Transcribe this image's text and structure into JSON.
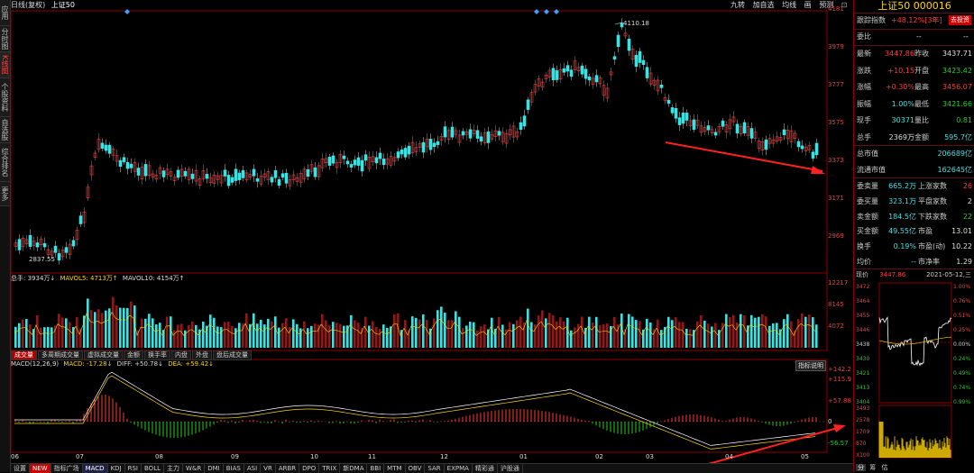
{
  "left_tabs": [
    "应用",
    "分时图",
    "K线图",
    "个股资料",
    "自选股",
    "综合排名",
    "更多"
  ],
  "chart_header": {
    "period": "日线(复权)",
    "symbol": "上证50"
  },
  "toolbar": [
    "九转",
    "加自选",
    "均线",
    "画",
    "预测"
  ],
  "price_axis": [
    "4181",
    "3979",
    "3777",
    "3575",
    "3373",
    "3171",
    "2969"
  ],
  "price_labels": {
    "high": "4110.18",
    "low": "2837.55"
  },
  "volume_header": {
    "total": "总手: 3934万↓",
    "ma5": "MAVOL5: 4713万↑",
    "ma10": "MAVOL10: 4154万↑"
  },
  "volume_axis": [
    "12217",
    "8145",
    "4072"
  ],
  "volume_tabs": [
    "成交量",
    "多周期成交量",
    "虚拟成交量",
    "金额",
    "换手率",
    "内盘",
    "外盘",
    "盘后成交量"
  ],
  "macd_header": {
    "name": "MACD(12,26,9)",
    "macd": "MACD: -17.28↓",
    "diff": "DIFF: +50.78↓",
    "dea": "DEA: +59.42↓"
  },
  "macd_button": "指标说明",
  "macd_axis": [
    "+142.2",
    "+115.9",
    "+57.88",
    "0",
    "-56.57"
  ],
  "x_axis": [
    "06",
    "07",
    "08",
    "09",
    "10",
    "11",
    "12",
    "01",
    "02",
    "03",
    "04",
    "05"
  ],
  "bottom_tabs": [
    "设置",
    "NEW",
    "指标广场",
    "MACD",
    "KDJ",
    "RSI",
    "BOLL",
    "主力",
    "W&R",
    "DMI",
    "BIAS",
    "ASI",
    "VR",
    "ARBR",
    "DPO",
    "TRIX",
    "新DMA",
    "BBI",
    "MTM",
    "OBV",
    "SAR",
    "EXPMA",
    "精彩通",
    "沪股通"
  ],
  "info": {
    "title": "上证50 000016",
    "track": {
      "label": "跟踪指数",
      "value": "+48.12%[3年]",
      "button": "去投资"
    },
    "weibi": {
      "label": "委比",
      "v1": "--",
      "v2": "--"
    },
    "rows": [
      {
        "k1": "最新",
        "v1": "3447.86",
        "c1": "red",
        "k2": "昨收",
        "v2": "3437.71",
        "c2": "white"
      },
      {
        "k1": "涨跌",
        "v1": "+10.15",
        "c1": "red",
        "k2": "开盘",
        "v2": "3423.42",
        "c2": "green"
      },
      {
        "k1": "涨幅",
        "v1": "+0.30%",
        "c1": "red",
        "k2": "最高",
        "v2": "3456.07",
        "c2": "red"
      },
      {
        "k1": "振幅",
        "v1": "1.00%",
        "c1": "cyan",
        "k2": "最低",
        "v2": "3421.66",
        "c2": "green"
      },
      {
        "k1": "现手",
        "v1": "30371",
        "c1": "cyan",
        "k2": "量比",
        "v2": "0.81",
        "c2": "green"
      },
      {
        "k1": "总手",
        "v1": "2369万",
        "c1": "white",
        "k2": "金额",
        "v2": "595.7亿",
        "c2": "cyan"
      }
    ],
    "caps": [
      {
        "k": "总市值",
        "v": "206689亿"
      },
      {
        "k": "流通市值",
        "v": "162645亿"
      }
    ],
    "stats": [
      {
        "k1": "委卖量",
        "v1": "665.2万",
        "k2": "上涨家数",
        "v2": "26",
        "c2": "red"
      },
      {
        "k1": "委买量",
        "v1": "323.1万",
        "k2": "平盘家数",
        "v2": "2",
        "c2": "white"
      },
      {
        "k1": "卖金额",
        "v1": "184.5亿",
        "k2": "下跌家数",
        "v2": "22",
        "c2": "green"
      },
      {
        "k1": "买金额",
        "v1": "49.55亿",
        "k2": "市盈",
        "v2": "13.01",
        "c2": "white"
      },
      {
        "k1": "换手",
        "v1": "0.19%",
        "k2": "市盈(动)",
        "v2": "10.22",
        "c2": "white"
      },
      {
        "k1": "均价",
        "v1": "--",
        "k2": "市净率",
        "v2": "1.29",
        "c2": "white"
      }
    ],
    "mini": {
      "now_label": "现价",
      "now_value": "3447.86",
      "date": "2021-05-12,三",
      "left_axis": [
        "3472",
        "3464",
        "3455",
        "3446",
        "3438",
        "3430",
        "3421",
        "3413",
        "3404"
      ],
      "right_axis": [
        "1.00%",
        "0.76%",
        "0.51%",
        "0.25%",
        "0.00%",
        "0.24%",
        "0.49%",
        "0.74%",
        "0.99%"
      ],
      "vol_axis": [
        "3493",
        "2578",
        "1709",
        "870",
        "X100"
      ],
      "tabs": [
        "分",
        "筹",
        "估"
      ]
    }
  },
  "colors": {
    "up": "#ff3b3b",
    "down": "#40e0e0",
    "ma_white": "#ffffff",
    "ma_yellow": "#ffd600",
    "arrow": "#ff2020"
  }
}
